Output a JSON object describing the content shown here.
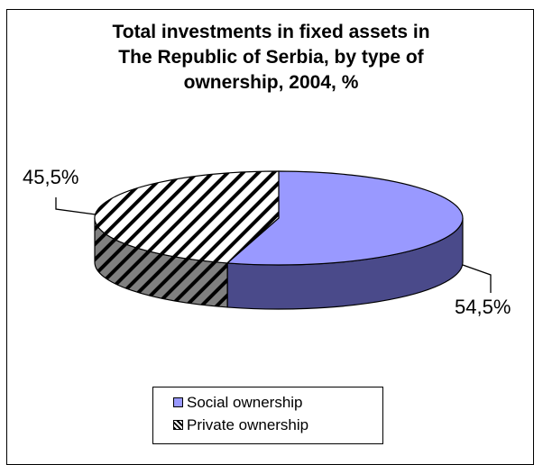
{
  "chart_data": {
    "type": "pie",
    "title": "Total investments in fixed assets in\nThe Republic of Serbia, by type of\nownership, 2004, %",
    "categories": [
      "Social ownership",
      "Private ownership"
    ],
    "values": [
      54.5,
      45.5
    ],
    "data_labels": [
      "54,5%",
      "45,5%"
    ],
    "legend_position": "bottom",
    "colors": {
      "social": "#9999ff",
      "social_side": "#4a4a8a",
      "private_hatch": "#000000"
    }
  }
}
